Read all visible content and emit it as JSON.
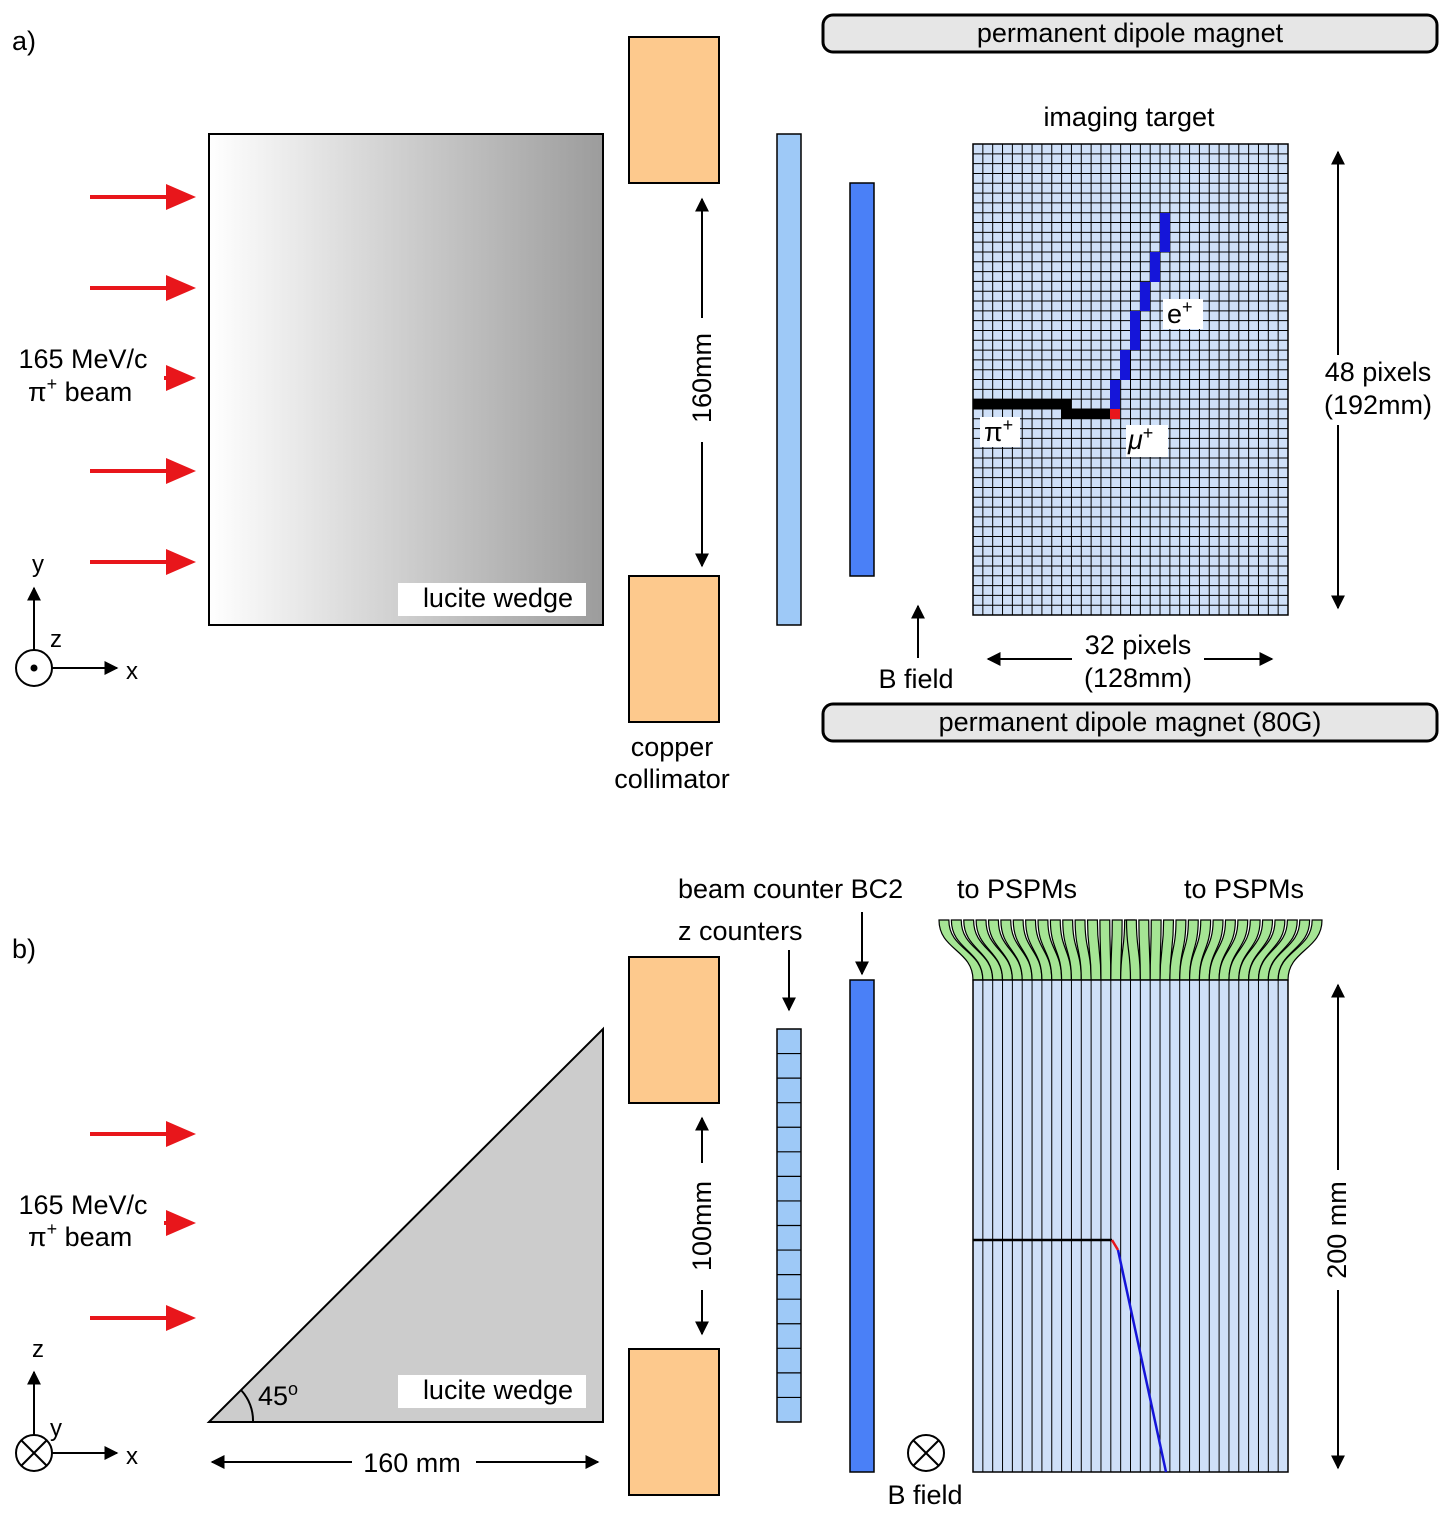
{
  "colors": {
    "beam_arrow": "#e8161b",
    "copper": "#fdc98d",
    "z_counter": "#9ec9f7",
    "bc2": "#4a80f7",
    "target_fill": "#cfe0f8",
    "track_pion": "#000000",
    "track_muon": "#e8161b",
    "track_positron": "#1515d9",
    "fiber_green": "#a5e594",
    "magnet_fill": "#e6e6e6",
    "wedge_gray": "#cccccc"
  },
  "panel_a": {
    "label": "a)",
    "magnet_top": "permanent dipole magnet",
    "magnet_bottom": "permanent dipole magnet (80G)",
    "beam_energy": "165 MeV/c",
    "beam_particle": "π",
    "beam_charge": "+",
    "beam_word": " beam",
    "wedge_label": "lucite wedge",
    "collimator_gap": "160mm",
    "collimator_label_1": "copper",
    "collimator_label_2": "collimator",
    "target_label": "imaging target",
    "height_pixels": "48 pixels",
    "height_mm": "(192mm)",
    "width_pixels": "32 pixels",
    "width_mm": "(128mm)",
    "bfield_label": "B field",
    "pion_base": "π",
    "pion_sup": "+",
    "muon_base": "μ",
    "muon_sup": "+",
    "positron_base": "e",
    "positron_sup": "+",
    "axis_y": "y",
    "axis_z": "z",
    "axis_x": "x",
    "grid_columns": 32,
    "grid_rows": 48
  },
  "panel_b": {
    "label": "b)",
    "beam_energy": "165 MeV/c",
    "beam_particle": "π",
    "beam_charge": "+",
    "beam_word": " beam",
    "wedge_label": "lucite wedge",
    "wedge_angle": "45",
    "wedge_angle_unit": "o",
    "wedge_width": "160 mm",
    "collimator_gap": "100mm",
    "bc2_label": "beam counter BC2",
    "z_counters_label": "z counters",
    "pspm_left": "to PSPMs",
    "pspm_right": "to PSPMs",
    "target_height": "200 mm",
    "bfield_label": "B field",
    "axis_z": "z",
    "axis_y": "y",
    "axis_x": "x",
    "z_counter_segments": 16,
    "fiber_count": 32
  }
}
